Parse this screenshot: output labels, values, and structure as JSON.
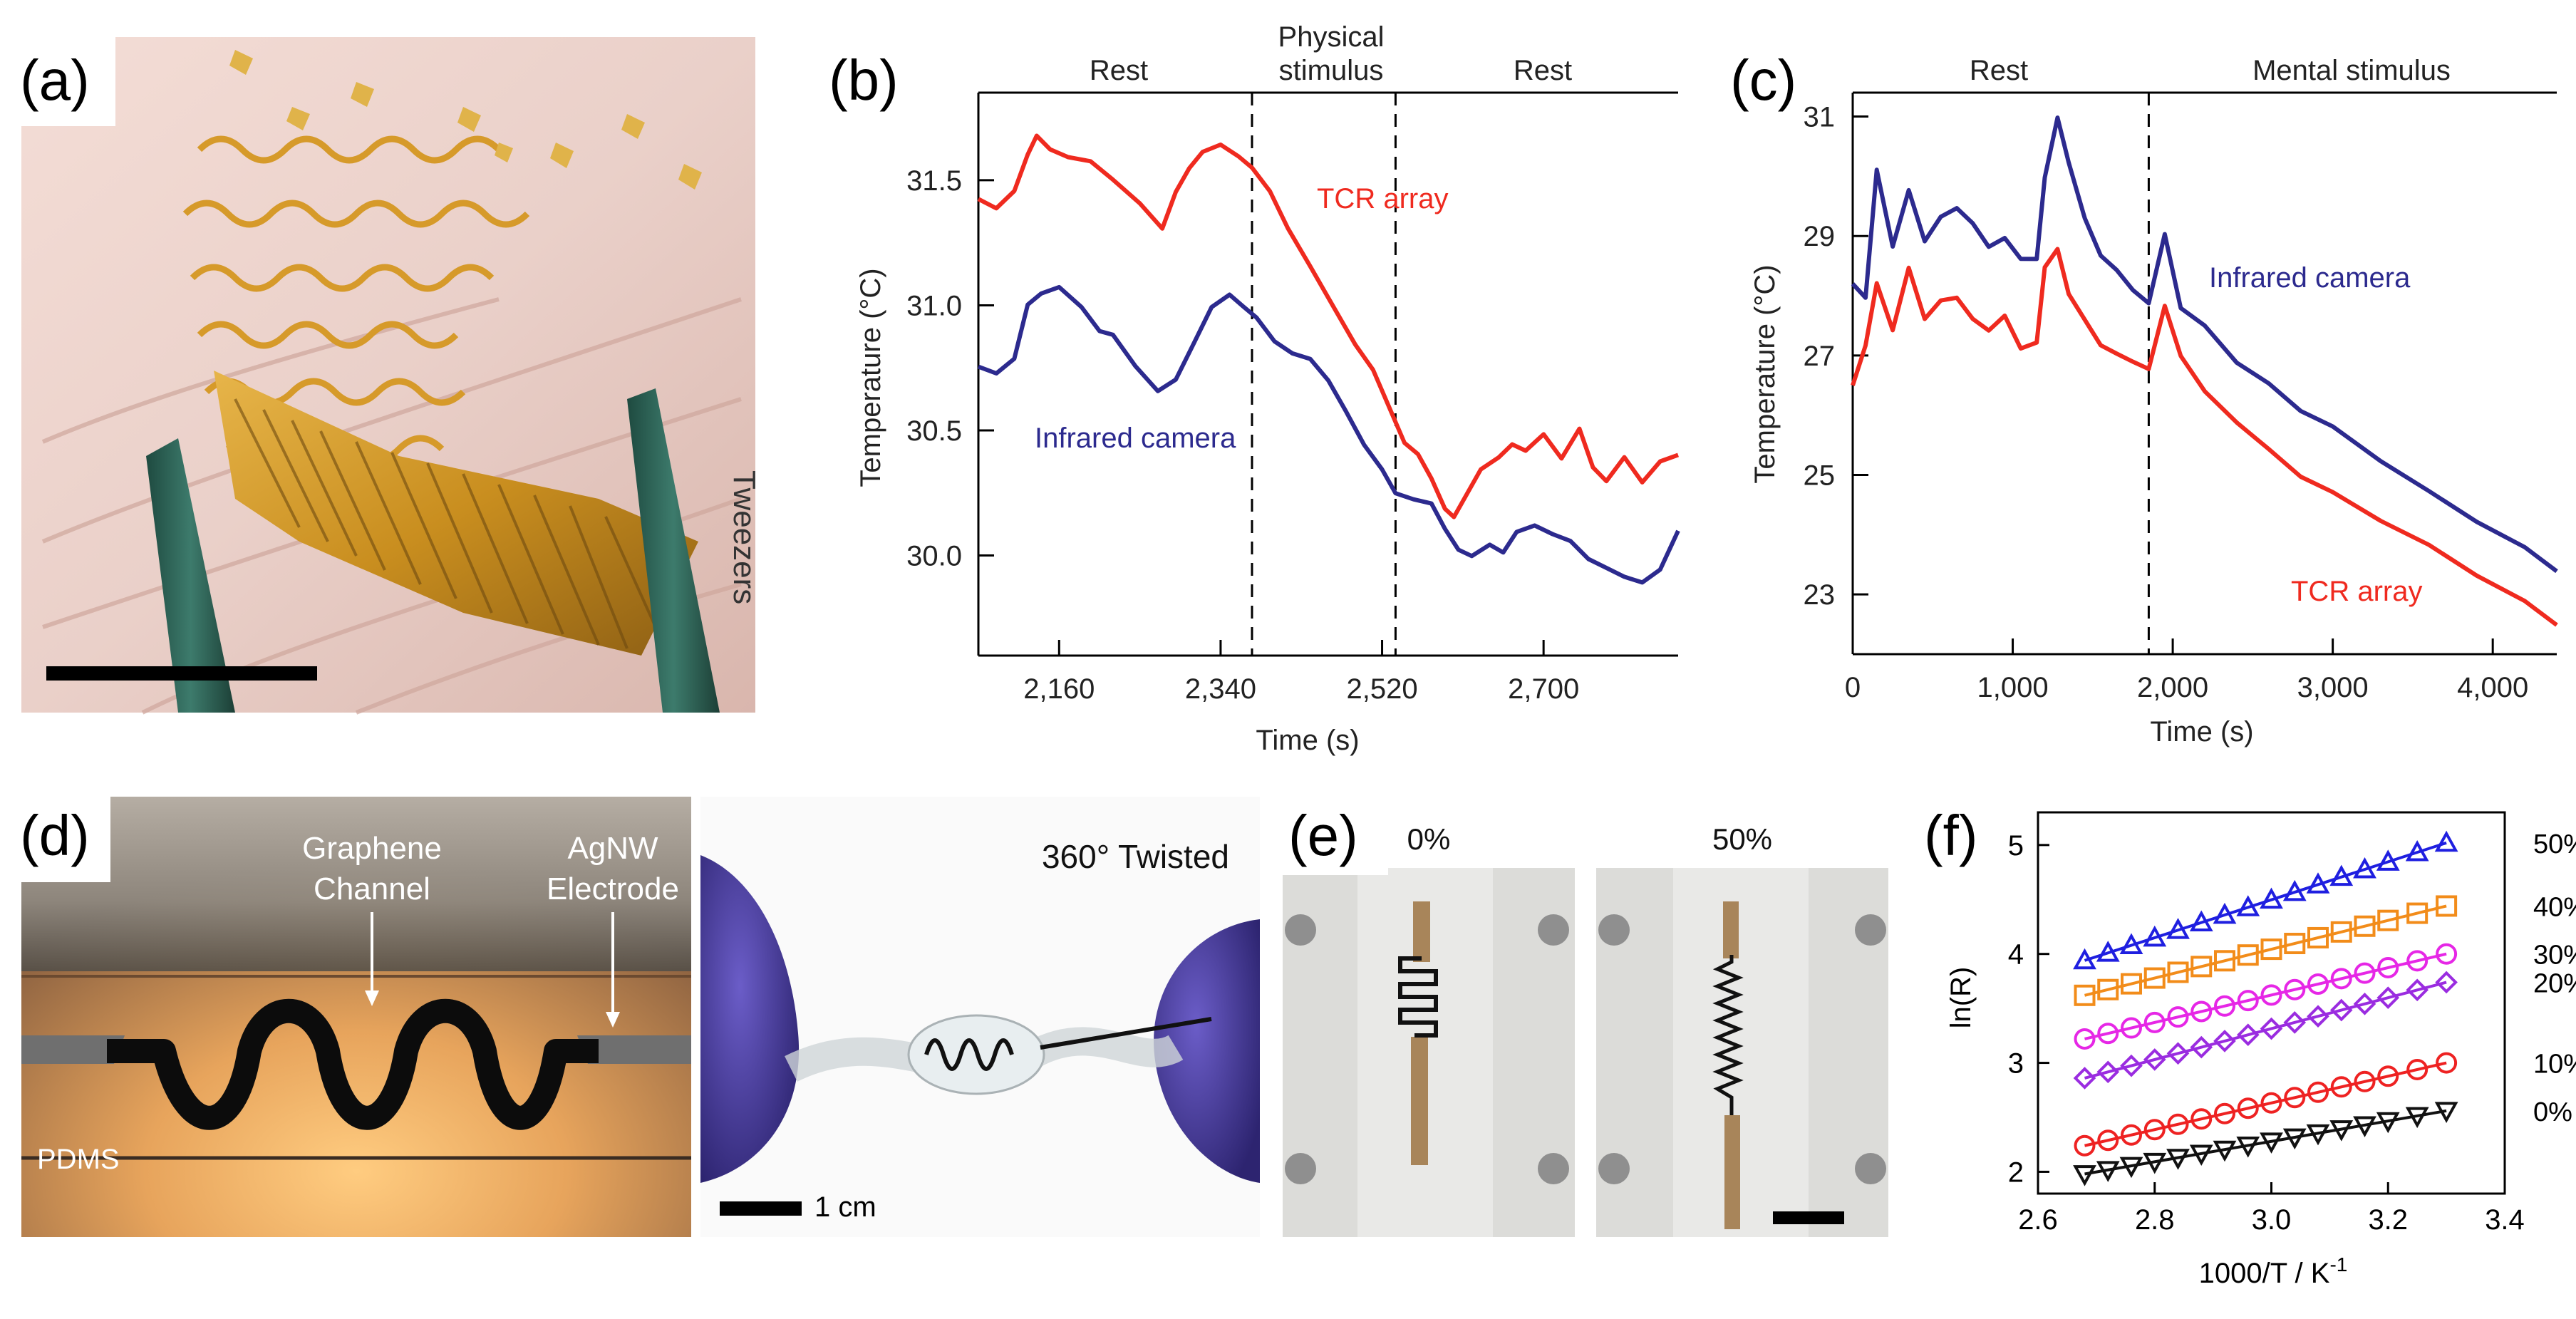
{
  "panels": {
    "a": {
      "label": "(a)",
      "tweezers_label": "Tweezers"
    },
    "b": {
      "label": "(b)",
      "phase_rest_1": "Rest",
      "phase_physical_1": "Physical",
      "phase_physical_2": "stimulus",
      "phase_rest_2": "Rest",
      "series_tcr_label": "TCR array",
      "series_ir_label": "Infrared camera"
    },
    "c": {
      "label": "(c)",
      "phase_rest": "Rest",
      "phase_mental": "Mental stimulus",
      "series_ir_label": "Infrared camera",
      "series_tcr_label": "TCR array"
    },
    "d": {
      "label": "(d)",
      "graphene_line1": "Graphene",
      "graphene_line2": "Channel",
      "agnw_line1": "AgNW",
      "agnw_line2": "Electrode",
      "pdms_label": "PDMS",
      "twisted_label": "360° Twisted",
      "scale_label": "1 cm"
    },
    "e": {
      "label": "(e)",
      "strain_0": "0%",
      "strain_50": "50%"
    },
    "f": {
      "label": "(f)"
    }
  },
  "colors": {
    "tcr": "#ef2a1f",
    "ir": "#2c2a8e"
  },
  "chart_data": [
    {
      "id": "b",
      "type": "line",
      "title": "",
      "xlabel": "Time (s)",
      "ylabel": "Temperature (°C)",
      "xlim": [
        2070,
        2850
      ],
      "ylim": [
        29.6,
        31.85
      ],
      "xticks": [
        2160,
        2340,
        2520,
        2700
      ],
      "xtick_labels": [
        "2,160",
        "2,340",
        "2,520",
        "2,700"
      ],
      "yticks": [
        30.0,
        30.5,
        31.0,
        31.5
      ],
      "ytick_labels": [
        "30.0",
        "30.5",
        "31.0",
        "31.5"
      ],
      "vlines": [
        2375,
        2535
      ],
      "series": [
        {
          "name": "TCR array",
          "color": "#ef2a1f",
          "x": [
            2070,
            2090,
            2110,
            2125,
            2135,
            2150,
            2170,
            2195,
            2220,
            2250,
            2275,
            2290,
            2305,
            2320,
            2340,
            2360,
            2375,
            2395,
            2415,
            2440,
            2465,
            2490,
            2510,
            2530,
            2545,
            2560,
            2575,
            2590,
            2600,
            2615,
            2630,
            2650,
            2665,
            2680,
            2700,
            2720,
            2740,
            2755,
            2770,
            2790,
            2810,
            2830,
            2850
          ],
          "values": [
            31.42,
            31.38,
            31.45,
            31.6,
            31.68,
            31.63,
            31.6,
            31.58,
            31.5,
            31.4,
            31.3,
            31.45,
            31.55,
            31.62,
            31.65,
            31.6,
            31.55,
            31.45,
            31.3,
            31.15,
            31.0,
            30.85,
            30.75,
            30.58,
            30.45,
            30.4,
            30.3,
            30.18,
            30.15,
            30.25,
            30.35,
            30.4,
            30.45,
            30.42,
            30.48,
            30.38,
            30.5,
            30.35,
            30.3,
            30.4,
            30.3,
            30.38,
            30.4
          ]
        },
        {
          "name": "Infrared camera",
          "color": "#2c2a8e",
          "x": [
            2070,
            2090,
            2110,
            2125,
            2140,
            2160,
            2185,
            2205,
            2220,
            2245,
            2270,
            2290,
            2310,
            2330,
            2350,
            2365,
            2380,
            2400,
            2420,
            2440,
            2460,
            2480,
            2500,
            2520,
            2535,
            2555,
            2575,
            2590,
            2605,
            2620,
            2640,
            2655,
            2670,
            2690,
            2710,
            2730,
            2750,
            2770,
            2790,
            2810,
            2830,
            2850
          ],
          "values": [
            30.75,
            30.72,
            30.78,
            31.0,
            31.05,
            31.08,
            31.0,
            30.9,
            30.88,
            30.75,
            30.65,
            30.7,
            30.85,
            31.0,
            31.05,
            31.0,
            30.95,
            30.85,
            30.8,
            30.78,
            30.7,
            30.58,
            30.45,
            30.35,
            30.25,
            30.22,
            30.2,
            30.1,
            30.02,
            30.0,
            30.05,
            30.02,
            30.1,
            30.12,
            30.08,
            30.05,
            29.98,
            29.95,
            29.92,
            29.9,
            29.95,
            30.1
          ]
        }
      ]
    },
    {
      "id": "c",
      "type": "line",
      "title": "",
      "xlabel": "Time (s)",
      "ylabel": "Temperature (°C)",
      "xlim": [
        0,
        4400
      ],
      "ylim": [
        22.0,
        31.4
      ],
      "xticks": [
        0,
        1000,
        2000,
        3000,
        4000
      ],
      "xtick_labels": [
        "0",
        "1,000",
        "2,000",
        "3,000",
        "4,000"
      ],
      "yticks": [
        23,
        25,
        27,
        29,
        31
      ],
      "ytick_labels": [
        "23",
        "25",
        "27",
        "29",
        "31"
      ],
      "vlines": [
        1850
      ],
      "series": [
        {
          "name": "Infrared camera",
          "color": "#2c2a8e",
          "x": [
            0,
            80,
            150,
            250,
            350,
            450,
            550,
            650,
            750,
            850,
            950,
            1050,
            1150,
            1200,
            1280,
            1350,
            1450,
            1550,
            1650,
            1750,
            1850,
            1950,
            2050,
            2200,
            2400,
            2600,
            2800,
            3000,
            3300,
            3600,
            3900,
            4200,
            4400
          ],
          "values": [
            28.2,
            28.0,
            30.1,
            28.8,
            29.8,
            28.9,
            29.3,
            29.5,
            29.2,
            28.8,
            29.0,
            28.6,
            28.6,
            30.0,
            31.0,
            30.2,
            29.3,
            28.7,
            28.4,
            28.1,
            27.9,
            29.0,
            27.8,
            27.5,
            26.9,
            26.5,
            26.1,
            25.8,
            25.2,
            24.7,
            24.2,
            23.8,
            23.4
          ]
        },
        {
          "name": "TCR array",
          "color": "#ef2a1f",
          "x": [
            0,
            80,
            150,
            250,
            350,
            450,
            550,
            650,
            750,
            850,
            950,
            1050,
            1150,
            1200,
            1280,
            1350,
            1450,
            1550,
            1650,
            1750,
            1850,
            1950,
            2050,
            2200,
            2400,
            2600,
            2800,
            3000,
            3300,
            3600,
            3900,
            4200,
            4400
          ],
          "values": [
            26.5,
            27.2,
            28.2,
            27.4,
            28.5,
            27.6,
            27.9,
            28.0,
            27.6,
            27.4,
            27.7,
            27.1,
            27.2,
            28.5,
            28.8,
            28.0,
            27.6,
            27.2,
            27.0,
            26.9,
            26.8,
            27.8,
            27.0,
            26.4,
            25.9,
            25.4,
            25.0,
            24.7,
            24.2,
            23.8,
            23.3,
            22.9,
            22.5
          ]
        }
      ]
    },
    {
      "id": "f",
      "type": "scatter",
      "title": "",
      "xlabel": "1000/T / K",
      "xlabel_sup": "-1",
      "ylabel": "ln(R)",
      "xlim": [
        2.6,
        3.4
      ],
      "ylim": [
        1.8,
        5.3
      ],
      "xticks": [
        2.6,
        2.8,
        3.0,
        3.2,
        3.4
      ],
      "xtick_labels": [
        "2.6",
        "2.8",
        "3.0",
        "3.2",
        "3.4"
      ],
      "yticks": [
        2,
        3,
        4,
        5
      ],
      "ytick_labels": [
        "2",
        "3",
        "4",
        "5"
      ],
      "x": [
        2.68,
        2.72,
        2.76,
        2.8,
        2.84,
        2.88,
        2.92,
        2.96,
        3.0,
        3.04,
        3.08,
        3.12,
        3.16,
        3.2,
        3.25,
        3.3
      ],
      "series": [
        {
          "name": "50%",
          "color": "#1f1fe0",
          "marker": "triangle-up",
          "y0": 3.94,
          "y1": 5.02
        },
        {
          "name": "40%",
          "color": "#f28c1a",
          "marker": "square",
          "y0": 3.62,
          "y1": 4.44
        },
        {
          "name": "30%",
          "color": "#e627e6",
          "marker": "circle",
          "y0": 3.22,
          "y1": 4.0
        },
        {
          "name": "20%",
          "color": "#9a2ce0",
          "marker": "diamond",
          "y0": 2.86,
          "y1": 3.74
        },
        {
          "name": "10%",
          "color": "#ee2222",
          "marker": "circle",
          "y0": 2.24,
          "y1": 3.0
        },
        {
          "name": "0%",
          "color": "#111111",
          "marker": "triangle-down",
          "y0": 1.98,
          "y1": 2.56
        }
      ]
    }
  ]
}
